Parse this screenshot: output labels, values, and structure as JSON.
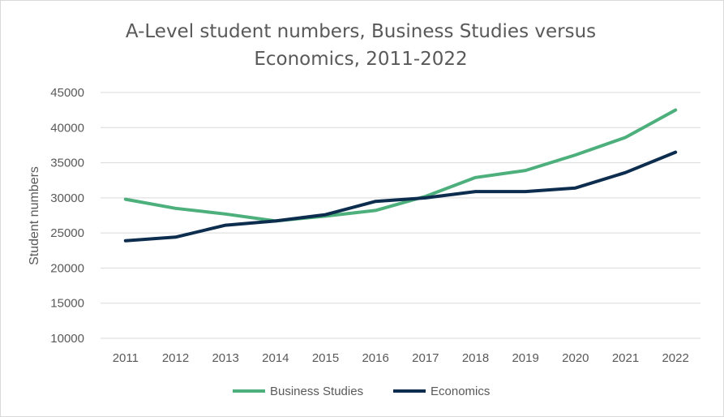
{
  "chart_data": {
    "type": "line",
    "title": "A-Level student numbers, Business Studies versus Economics, 2011-2022",
    "xlabel": "",
    "ylabel": "Student numbers",
    "x": [
      "2011",
      "2012",
      "2013",
      "2014",
      "2015",
      "2016",
      "2017",
      "2018",
      "2019",
      "2020",
      "2021",
      "2022"
    ],
    "ylim": [
      10000,
      45000
    ],
    "yticks": [
      "10000",
      "15000",
      "20000",
      "25000",
      "30000",
      "35000",
      "40000",
      "45000"
    ],
    "grid": true,
    "legend_position": "bottom",
    "series": [
      {
        "name": "Business Studies",
        "color": "#4daf7c",
        "values": [
          29800,
          28500,
          27700,
          26700,
          27400,
          28200,
          30200,
          32900,
          33900,
          36100,
          38600,
          42500
        ]
      },
      {
        "name": "Economics",
        "color": "#0d2d4f",
        "values": [
          23900,
          24400,
          26100,
          26700,
          27600,
          29500,
          30000,
          30900,
          30900,
          31400,
          33600,
          36500
        ]
      }
    ]
  }
}
